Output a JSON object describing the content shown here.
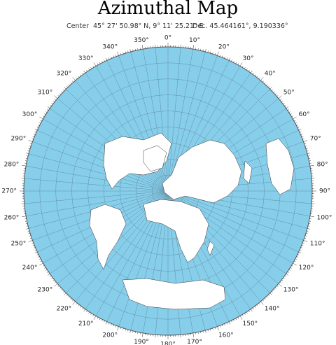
{
  "header": {
    "title": "Azimuthal Map",
    "center_label": "Center",
    "center_dms": "45° 27' 50.98\" N, 9° 11' 25.21\" E",
    "center_decimal": "Dec. 45.464161°, 9.190336°"
  },
  "map": {
    "bearing_labels": [
      "0°",
      "10°",
      "20°",
      "30°",
      "40°",
      "50°",
      "60°",
      "70°",
      "80°",
      "90°",
      "100°",
      "110°",
      "120°",
      "130°",
      "140°",
      "150°",
      "160°",
      "170°",
      "180°",
      "190°",
      "200°",
      "210°",
      "220°",
      "230°",
      "240°",
      "250°",
      "260°",
      "270°",
      "280°",
      "290°",
      "300°",
      "310°",
      "320°",
      "330°",
      "340°",
      "350°"
    ]
  }
}
